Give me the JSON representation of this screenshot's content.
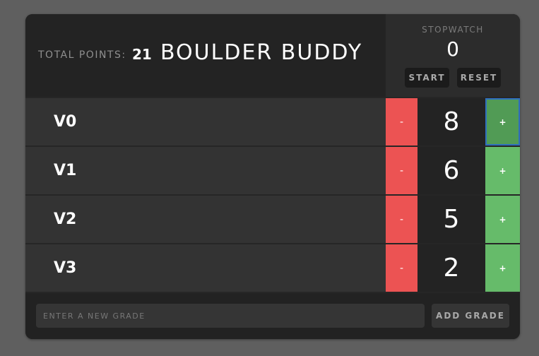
{
  "header": {
    "total_points_label": "TOTAL POINTS:",
    "total_points_value": "21",
    "title": "BOULDER BUDDY"
  },
  "stopwatch": {
    "label": "STOPWATCH",
    "value": "0",
    "start_label": "START",
    "reset_label": "RESET"
  },
  "grades": [
    {
      "name": "V0",
      "count": "8",
      "minus_label": "-",
      "plus_label": "+"
    },
    {
      "name": "V1",
      "count": "6",
      "minus_label": "-",
      "plus_label": "+"
    },
    {
      "name": "V2",
      "count": "5",
      "minus_label": "-",
      "plus_label": "+"
    },
    {
      "name": "V3",
      "count": "2",
      "minus_label": "-",
      "plus_label": "+"
    }
  ],
  "footer": {
    "input_placeholder": "ENTER A NEW GRADE",
    "input_value": "",
    "add_label": "ADD GRADE"
  },
  "colors": {
    "minus": "#ec5353",
    "plus": "#66bb6a",
    "background": "#222222"
  }
}
